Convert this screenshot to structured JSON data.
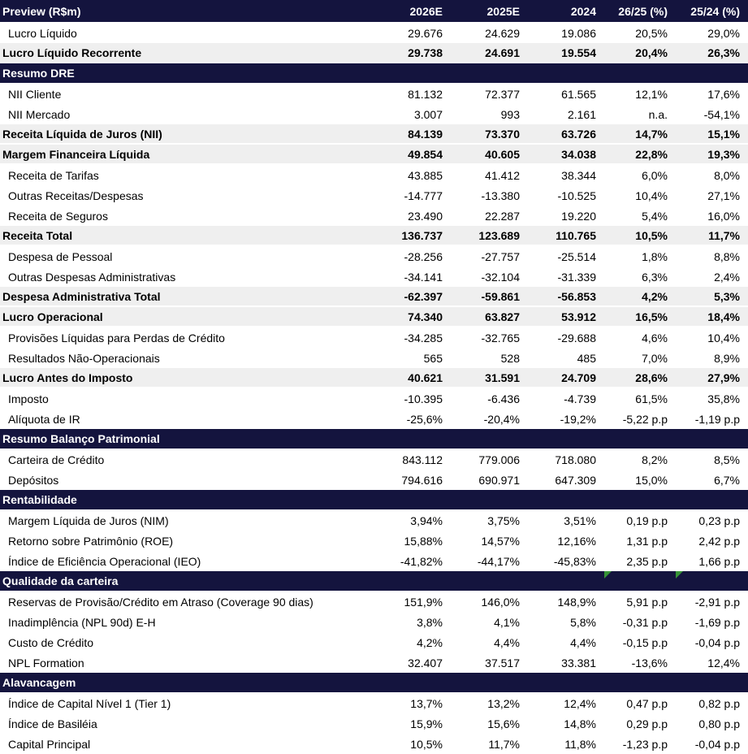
{
  "colors": {
    "navy": "#14143E",
    "gray": "#EFEFEF",
    "green": "#379337",
    "text": "#000000",
    "header_text": "#FFFFFF"
  },
  "table": {
    "title": "Preview (R$m)",
    "value_columns": [
      "2026E",
      "2025E",
      "2024",
      "26/25 (%)",
      "25/24 (%)"
    ],
    "rows": [
      {
        "type": "data",
        "label": "Lucro Líquido",
        "values": [
          "29.676",
          "24.629",
          "19.086",
          "20,5%",
          "29,0%"
        ]
      },
      {
        "type": "total",
        "label": "Lucro Líquido Recorrente",
        "values": [
          "29.738",
          "24.691",
          "19.554",
          "20,4%",
          "26,3%"
        ]
      },
      {
        "type": "section",
        "label": "Resumo DRE"
      },
      {
        "type": "data",
        "label": "NII Cliente",
        "values": [
          "81.132",
          "72.377",
          "61.565",
          "12,1%",
          "17,6%"
        ]
      },
      {
        "type": "data",
        "label": "NII Mercado",
        "values": [
          "3.007",
          "993",
          "2.161",
          "n.a.",
          "-54,1%"
        ]
      },
      {
        "type": "total",
        "label": "Receita Líquida de Juros (NII)",
        "values": [
          "84.139",
          "73.370",
          "63.726",
          "14,7%",
          "15,1%"
        ]
      },
      {
        "type": "total",
        "label": "Margem Financeira Líquida",
        "values": [
          "49.854",
          "40.605",
          "34.038",
          "22,8%",
          "19,3%"
        ]
      },
      {
        "type": "data",
        "label": "Receita de Tarifas",
        "values": [
          "43.885",
          "41.412",
          "38.344",
          "6,0%",
          "8,0%"
        ]
      },
      {
        "type": "data",
        "label": "Outras Receitas/Despesas",
        "values": [
          "-14.777",
          "-13.380",
          "-10.525",
          "10,4%",
          "27,1%"
        ]
      },
      {
        "type": "data",
        "label": "Receita de Seguros",
        "values": [
          "23.490",
          "22.287",
          "19.220",
          "5,4%",
          "16,0%"
        ]
      },
      {
        "type": "total",
        "label": "Receita Total",
        "values": [
          "136.737",
          "123.689",
          "110.765",
          "10,5%",
          "11,7%"
        ]
      },
      {
        "type": "data",
        "label": "Despesa de Pessoal",
        "values": [
          "-28.256",
          "-27.757",
          "-25.514",
          "1,8%",
          "8,8%"
        ]
      },
      {
        "type": "data",
        "label": "Outras Despesas Administrativas",
        "values": [
          "-34.141",
          "-32.104",
          "-31.339",
          "6,3%",
          "2,4%"
        ]
      },
      {
        "type": "total",
        "label": "Despesa Administrativa Total",
        "values": [
          "-62.397",
          "-59.861",
          "-56.853",
          "4,2%",
          "5,3%"
        ]
      },
      {
        "type": "total",
        "label": "Lucro Operacional",
        "values": [
          "74.340",
          "63.827",
          "53.912",
          "16,5%",
          "18,4%"
        ]
      },
      {
        "type": "data",
        "label": "Provisões Líquidas para Perdas de Crédito",
        "values": [
          "-34.285",
          "-32.765",
          "-29.688",
          "4,6%",
          "10,4%"
        ]
      },
      {
        "type": "data",
        "label": "Resultados Não-Operacionais",
        "values": [
          "565",
          "528",
          "485",
          "7,0%",
          "8,9%"
        ]
      },
      {
        "type": "total",
        "label": "Lucro Antes do Imposto",
        "values": [
          "40.621",
          "31.591",
          "24.709",
          "28,6%",
          "27,9%"
        ]
      },
      {
        "type": "data",
        "label": "Imposto",
        "values": [
          "-10.395",
          "-6.436",
          "-4.739",
          "61,5%",
          "35,8%"
        ]
      },
      {
        "type": "data",
        "label": "Alíquota de IR",
        "values": [
          "-25,6%",
          "-20,4%",
          "-19,2%",
          "-5,22 p.p",
          "-1,19 p.p"
        ]
      },
      {
        "type": "section",
        "label": "Resumo Balanço Patrimonial"
      },
      {
        "type": "data",
        "label": "Carteira de Crédito",
        "values": [
          "843.112",
          "779.006",
          "718.080",
          "8,2%",
          "8,5%"
        ]
      },
      {
        "type": "data",
        "label": "Depósitos",
        "values": [
          "794.616",
          "690.971",
          "647.309",
          "15,0%",
          "6,7%"
        ]
      },
      {
        "type": "section",
        "label": "Rentabilidade"
      },
      {
        "type": "data",
        "label": "Margem Líquida de Juros (NIM)",
        "values": [
          "3,94%",
          "3,75%",
          "3,51%",
          "0,19 p.p",
          "0,23 p.p"
        ]
      },
      {
        "type": "data",
        "label": "Retorno sobre Patrimônio (ROE)",
        "values": [
          "15,88%",
          "14,57%",
          "12,16%",
          "1,31 p.p",
          "2,42 p.p"
        ]
      },
      {
        "type": "data",
        "label": "Índice de Eficiência Operacional (IEO)",
        "values": [
          "-41,82%",
          "-44,17%",
          "-45,83%",
          "2,35 p.p",
          "1,66 p.p"
        ]
      },
      {
        "type": "section",
        "label": "Qualidade da carteira",
        "error_markers": [
          3,
          4
        ]
      },
      {
        "type": "data",
        "label": "Reservas de Provisão/Crédito em Atraso (Coverage 90 dias)",
        "values": [
          "151,9%",
          "146,0%",
          "148,9%",
          "5,91 p.p",
          "-2,91 p.p"
        ]
      },
      {
        "type": "data",
        "label": "Inadimplência (NPL 90d) E-H",
        "values": [
          "3,8%",
          "4,1%",
          "5,8%",
          "-0,31 p.p",
          "-1,69 p.p"
        ]
      },
      {
        "type": "data",
        "label": "Custo de Crédito",
        "values": [
          "4,2%",
          "4,4%",
          "4,4%",
          "-0,15 p.p",
          "-0,04 p.p"
        ]
      },
      {
        "type": "data",
        "label": "NPL Formation",
        "values": [
          "32.407",
          "37.517",
          "33.381",
          "-13,6%",
          "12,4%"
        ]
      },
      {
        "type": "section",
        "label": "Alavancagem"
      },
      {
        "type": "data",
        "label": "Índice de Capital Nível 1 (Tier 1)",
        "values": [
          "13,7%",
          "13,2%",
          "12,4%",
          "0,47 p.p",
          "0,82 p.p"
        ]
      },
      {
        "type": "data",
        "label": "Índice de Basiléia",
        "values": [
          "15,9%",
          "15,6%",
          "14,8%",
          "0,29 p.p",
          "0,80 p.p"
        ]
      },
      {
        "type": "data",
        "label": "Capital Principal",
        "values": [
          "10,5%",
          "11,7%",
          "11,8%",
          "-1,23 p.p",
          "-0,04 p.p"
        ]
      }
    ]
  }
}
